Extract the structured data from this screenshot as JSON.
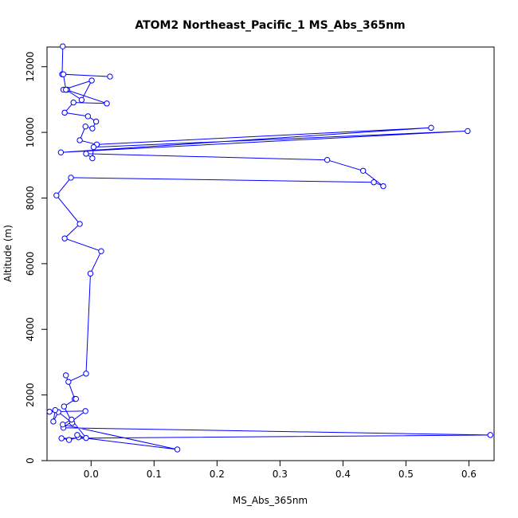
{
  "chart_data": {
    "type": "line",
    "title": "ATOM2 Northeast_Pacific_1 MS_Abs_365nm",
    "xlabel": "MS_Abs_365nm",
    "ylabel": "Altitude (m)",
    "xlim": [
      -0.07,
      0.64
    ],
    "ylim": [
      0,
      12600
    ],
    "xticks": [
      0.0,
      0.1,
      0.2,
      0.3,
      0.4,
      0.5,
      0.6
    ],
    "xtick_labels": [
      "0.0",
      "0.1",
      "0.2",
      "0.3",
      "0.4",
      "0.5",
      "0.6"
    ],
    "yticks": [
      0,
      2000,
      4000,
      6000,
      8000,
      10000,
      12000
    ],
    "ytick_labels": [
      "0",
      "2000",
      "4000",
      "6000",
      "8000",
      "10000",
      "12000"
    ],
    "grid": false,
    "marker": "open-circle",
    "color": "#0000ff",
    "series": [
      {
        "x": [
          -0.045,
          -0.046,
          0.03,
          -0.044,
          -0.04,
          -0.038,
          -0.044,
          0.001,
          -0.015,
          -0.04,
          0.025,
          -0.028,
          -0.042,
          -0.005,
          0.008,
          0.002,
          -0.009,
          -0.018,
          0.009,
          0.54,
          -0.048,
          0.598,
          0.004,
          0.002,
          -0.008,
          0.375,
          0.432,
          0.464,
          0.449,
          -0.032,
          -0.055,
          -0.018,
          -0.042,
          0.016,
          -0.001,
          -0.008,
          -0.036,
          -0.04,
          -0.026,
          -0.024,
          -0.043,
          -0.03,
          -0.052,
          -0.06,
          -0.057,
          -0.066,
          -0.009,
          -0.044,
          0.634,
          -0.047,
          -0.035,
          -0.02,
          0.137,
          -0.045,
          -0.031,
          -0.008,
          -0.022
        ],
        "y": [
          12620,
          11770,
          11700,
          11770,
          11300,
          11300,
          11300,
          11580,
          10990,
          11300,
          10880,
          10910,
          10600,
          10490,
          10330,
          10120,
          10180,
          9760,
          9630,
          10140,
          9390,
          10040,
          9550,
          9210,
          9350,
          9160,
          8830,
          8360,
          8480,
          8620,
          8080,
          7210,
          6770,
          6380,
          5700,
          2650,
          2400,
          2600,
          1880,
          1880,
          1650,
          1150,
          1480,
          1190,
          1540,
          1490,
          1510,
          1000,
          780,
          680,
          630,
          710,
          340,
          1100,
          1250,
          690,
          780
        ]
      }
    ]
  }
}
